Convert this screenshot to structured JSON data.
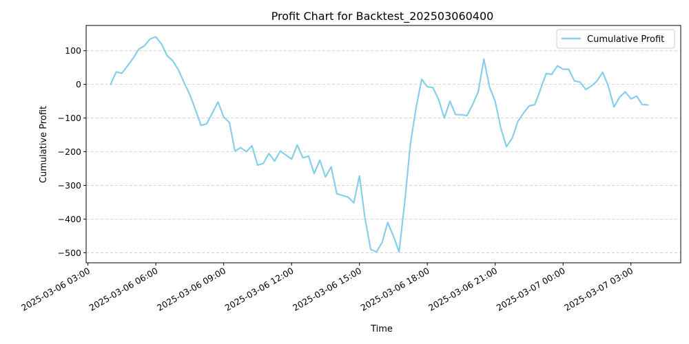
{
  "chart_data": {
    "type": "line",
    "title": "Profit Chart for Backtest_202503060400",
    "xlabel": "Time",
    "ylabel": "Cumulative Profit",
    "x_tick_labels": [
      "2025-03-06 03:00",
      "2025-03-06 06:00",
      "2025-03-06 09:00",
      "2025-03-06 12:00",
      "2025-03-06 15:00",
      "2025-03-06 18:00",
      "2025-03-06 21:00",
      "2025-03-07 00:00",
      "2025-03-07 03:00"
    ],
    "x_tick_hours": [
      0,
      3,
      6,
      9,
      12,
      15,
      18,
      21,
      24
    ],
    "y_ticks": [
      100,
      0,
      -100,
      -200,
      -300,
      -400,
      -500
    ],
    "xlim_hours": [
      -0.08,
      26.2
    ],
    "ylim": [
      -530,
      175
    ],
    "grid": "y-dashed",
    "legend_position": "top-right",
    "series": [
      {
        "name": "Cumulative Profit",
        "color": "#87CEEB",
        "x_hours": [
          1.0,
          1.25,
          1.5,
          1.75,
          2.0,
          2.25,
          2.5,
          2.75,
          3.0,
          3.25,
          3.5,
          3.75,
          4.0,
          4.25,
          4.5,
          4.75,
          5.0,
          5.25,
          5.5,
          5.75,
          6.0,
          6.25,
          6.5,
          6.75,
          7.0,
          7.25,
          7.5,
          7.75,
          8.0,
          8.25,
          8.5,
          8.75,
          9.0,
          9.25,
          9.5,
          9.75,
          10.0,
          10.25,
          10.5,
          10.75,
          11.0,
          11.25,
          11.5,
          11.75,
          12.0,
          12.25,
          12.5,
          12.75,
          13.0,
          13.25,
          13.5,
          13.75,
          14.0,
          14.25,
          14.5,
          14.75,
          15.0,
          15.25,
          15.5,
          15.75,
          16.0,
          16.25,
          16.5,
          16.75,
          17.0,
          17.25,
          17.5,
          17.75,
          18.0,
          18.25,
          18.5,
          18.75,
          19.0,
          19.25,
          19.5,
          19.75,
          20.0,
          20.25,
          20.5,
          20.75,
          21.0,
          21.25,
          21.5,
          21.75,
          22.0,
          22.25,
          22.5,
          22.75,
          23.0,
          23.25,
          23.5,
          23.75,
          24.0,
          24.25,
          24.5,
          24.75
        ],
        "values": [
          0,
          37,
          33,
          55,
          78,
          105,
          115,
          135,
          141,
          120,
          85,
          70,
          43,
          5,
          -30,
          -75,
          -122,
          -117,
          -85,
          -52,
          -97,
          -113,
          -198,
          -188,
          -200,
          -182,
          -240,
          -235,
          -205,
          -228,
          -198,
          -210,
          -222,
          -180,
          -218,
          -213,
          -265,
          -225,
          -275,
          -245,
          -325,
          -330,
          -335,
          -352,
          -272,
          -400,
          -490,
          -498,
          -470,
          -410,
          -450,
          -498,
          -350,
          -178,
          -70,
          15,
          -7,
          -10,
          -45,
          -100,
          -50,
          -90,
          -90,
          -93,
          -60,
          -22,
          75,
          -8,
          -50,
          -130,
          -185,
          -160,
          -110,
          -85,
          -64,
          -60,
          -15,
          32,
          30,
          55,
          45,
          45,
          10,
          7,
          -15,
          -5,
          10,
          36,
          -5,
          -67,
          -38,
          -22,
          -43,
          -35,
          -60,
          -61
        ]
      }
    ]
  }
}
